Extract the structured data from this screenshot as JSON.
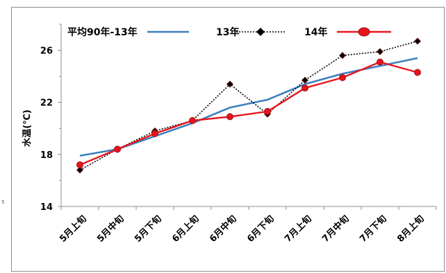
{
  "side_mark": "5",
  "chart_data": {
    "type": "line",
    "categories": [
      "5月上旬",
      "5月中旬",
      "5月下旬",
      "6月上旬",
      "6月中旬",
      "6月下旬",
      "7月上旬",
      "7月中旬",
      "7月下旬",
      "8月上旬"
    ],
    "ylabel": "水温(℃)",
    "ylim": [
      14,
      28
    ],
    "yticks": [
      14,
      18,
      22,
      26
    ],
    "grid": false,
    "legend_position": "top",
    "series": [
      {
        "name": "平均90年-13年",
        "color": "#3d7fbf",
        "style": "solid",
        "marker": "none",
        "values": [
          17.9,
          18.4,
          19.4,
          20.4,
          21.6,
          22.2,
          23.4,
          24.2,
          24.8,
          25.4
        ]
      },
      {
        "name": "13年",
        "color": "#000000",
        "style": "dotted",
        "marker": "diamond",
        "values": [
          16.8,
          18.4,
          19.8,
          20.6,
          23.4,
          21.1,
          23.7,
          25.6,
          25.9,
          26.7
        ]
      },
      {
        "name": "14年",
        "color": "#e8141c",
        "style": "solid",
        "marker": "circle",
        "values": [
          17.2,
          18.4,
          19.6,
          20.6,
          20.9,
          21.3,
          23.1,
          23.9,
          25.1,
          24.3
        ]
      }
    ]
  }
}
